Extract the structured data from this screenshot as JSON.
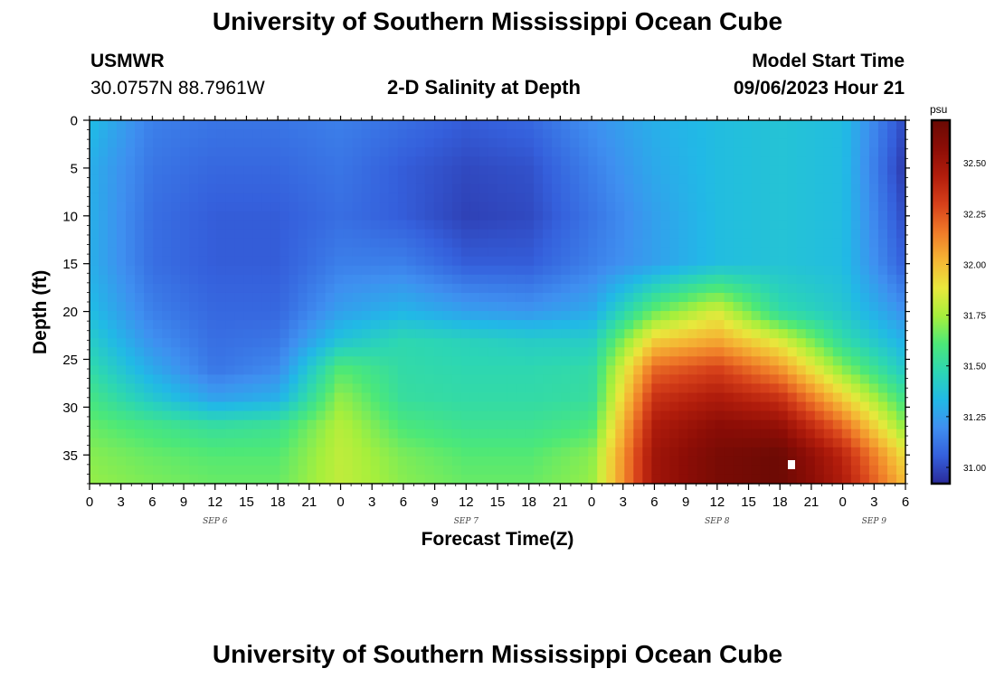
{
  "page_title": "University of Southern Mississippi Ocean Cube",
  "footer_title": "University of Southern Mississippi Ocean Cube",
  "station": {
    "name": "USMWR",
    "coords": "30.0757N  88.7961W"
  },
  "plot_title": "2-D Salinity at Depth",
  "model_start": {
    "label": "Model Start Time",
    "value": "09/06/2023 Hour 21"
  },
  "chart_data": {
    "type": "heatmap",
    "title": "2-D Salinity at Depth",
    "xlabel": "Forecast Time(Z)",
    "ylabel": "Depth (ft)",
    "x_tick_labels": [
      "0",
      "3",
      "6",
      "9",
      "12",
      "15",
      "18",
      "21",
      "0",
      "3",
      "6",
      "9",
      "12",
      "15",
      "18",
      "21",
      "0",
      "3",
      "6",
      "9",
      "12",
      "15",
      "18",
      "21",
      "0",
      "3",
      "6"
    ],
    "x_tick_hours": [
      0,
      3,
      6,
      9,
      12,
      15,
      18,
      21,
      24,
      27,
      30,
      33,
      36,
      39,
      42,
      45,
      48,
      51,
      54,
      57,
      60,
      63,
      66,
      69,
      72,
      75,
      78
    ],
    "date_labels": [
      {
        "label": "SEP 6",
        "hour": 12
      },
      {
        "label": "SEP 7",
        "hour": 36
      },
      {
        "label": "SEP 8",
        "hour": 60
      },
      {
        "label": "SEP 9",
        "hour": 75
      }
    ],
    "xlim": [
      0,
      78
    ],
    "y_tick_labels": [
      "0",
      "5",
      "10",
      "15",
      "20",
      "25",
      "30",
      "35"
    ],
    "y_ticks": [
      0,
      5,
      10,
      15,
      20,
      25,
      30,
      35
    ],
    "ylim": [
      0,
      38
    ],
    "y_inverted": true,
    "colorbar": {
      "unit": "psu",
      "range": [
        30.92,
        32.71
      ],
      "tick_labels": [
        "31.00",
        "31.25",
        "31.50",
        "31.75",
        "32.00",
        "32.25",
        "32.50"
      ],
      "ticks": [
        31.0,
        31.25,
        31.5,
        31.75,
        32.0,
        32.25,
        32.5
      ],
      "colors": [
        "#2a2a9a",
        "#3560dc",
        "#3f8ff0",
        "#21b9e6",
        "#2cd6b4",
        "#4ce878",
        "#a6ef3c",
        "#e8e83c",
        "#f5b534",
        "#ef7a28",
        "#d6401a",
        "#b21d0c",
        "#8c0d06",
        "#6a0a04"
      ]
    },
    "salinity_grid": {
      "x_hours": [
        0,
        6,
        12,
        18,
        24,
        30,
        36,
        42,
        48,
        54,
        60,
        66,
        72,
        78
      ],
      "depths_ft": [
        0,
        5,
        10,
        15,
        20,
        23,
        26,
        29,
        32,
        35,
        38
      ],
      "values_psu": [
        [
          31.35,
          31.15,
          31.12,
          31.12,
          31.15,
          31.1,
          31.05,
          31.08,
          31.2,
          31.3,
          31.35,
          31.38,
          31.35,
          31.0
        ],
        [
          31.3,
          31.12,
          31.08,
          31.08,
          31.12,
          31.05,
          31.0,
          31.02,
          31.15,
          31.28,
          31.35,
          31.38,
          31.35,
          30.95
        ],
        [
          31.3,
          31.1,
          31.05,
          31.05,
          31.1,
          31.05,
          30.98,
          31.0,
          31.12,
          31.25,
          31.35,
          31.38,
          31.35,
          31.0
        ],
        [
          31.3,
          31.1,
          31.05,
          31.05,
          31.15,
          31.15,
          31.05,
          31.05,
          31.15,
          31.25,
          31.35,
          31.38,
          31.35,
          31.05
        ],
        [
          31.35,
          31.15,
          31.08,
          31.08,
          31.25,
          31.32,
          31.25,
          31.22,
          31.28,
          31.65,
          31.85,
          31.5,
          31.4,
          31.2
        ],
        [
          31.42,
          31.2,
          31.1,
          31.12,
          31.38,
          31.48,
          31.45,
          31.42,
          31.42,
          31.95,
          32.05,
          31.85,
          31.5,
          31.3
        ],
        [
          31.5,
          31.28,
          31.12,
          31.18,
          31.62,
          31.5,
          31.48,
          31.48,
          31.5,
          32.2,
          32.3,
          32.1,
          31.7,
          31.4
        ],
        [
          31.58,
          31.4,
          31.25,
          31.3,
          31.72,
          31.52,
          31.5,
          31.5,
          31.52,
          32.35,
          32.45,
          32.35,
          31.95,
          31.55
        ],
        [
          31.65,
          31.58,
          31.52,
          31.55,
          31.78,
          31.6,
          31.55,
          31.55,
          31.6,
          32.45,
          32.58,
          32.55,
          32.2,
          31.7
        ],
        [
          31.7,
          31.65,
          31.62,
          31.62,
          31.8,
          31.68,
          31.62,
          31.62,
          31.7,
          32.5,
          32.65,
          32.7,
          32.4,
          31.9
        ],
        [
          31.72,
          31.68,
          31.65,
          31.65,
          31.8,
          31.7,
          31.65,
          31.65,
          31.72,
          32.5,
          32.65,
          32.7,
          32.45,
          32.0
        ]
      ]
    }
  }
}
